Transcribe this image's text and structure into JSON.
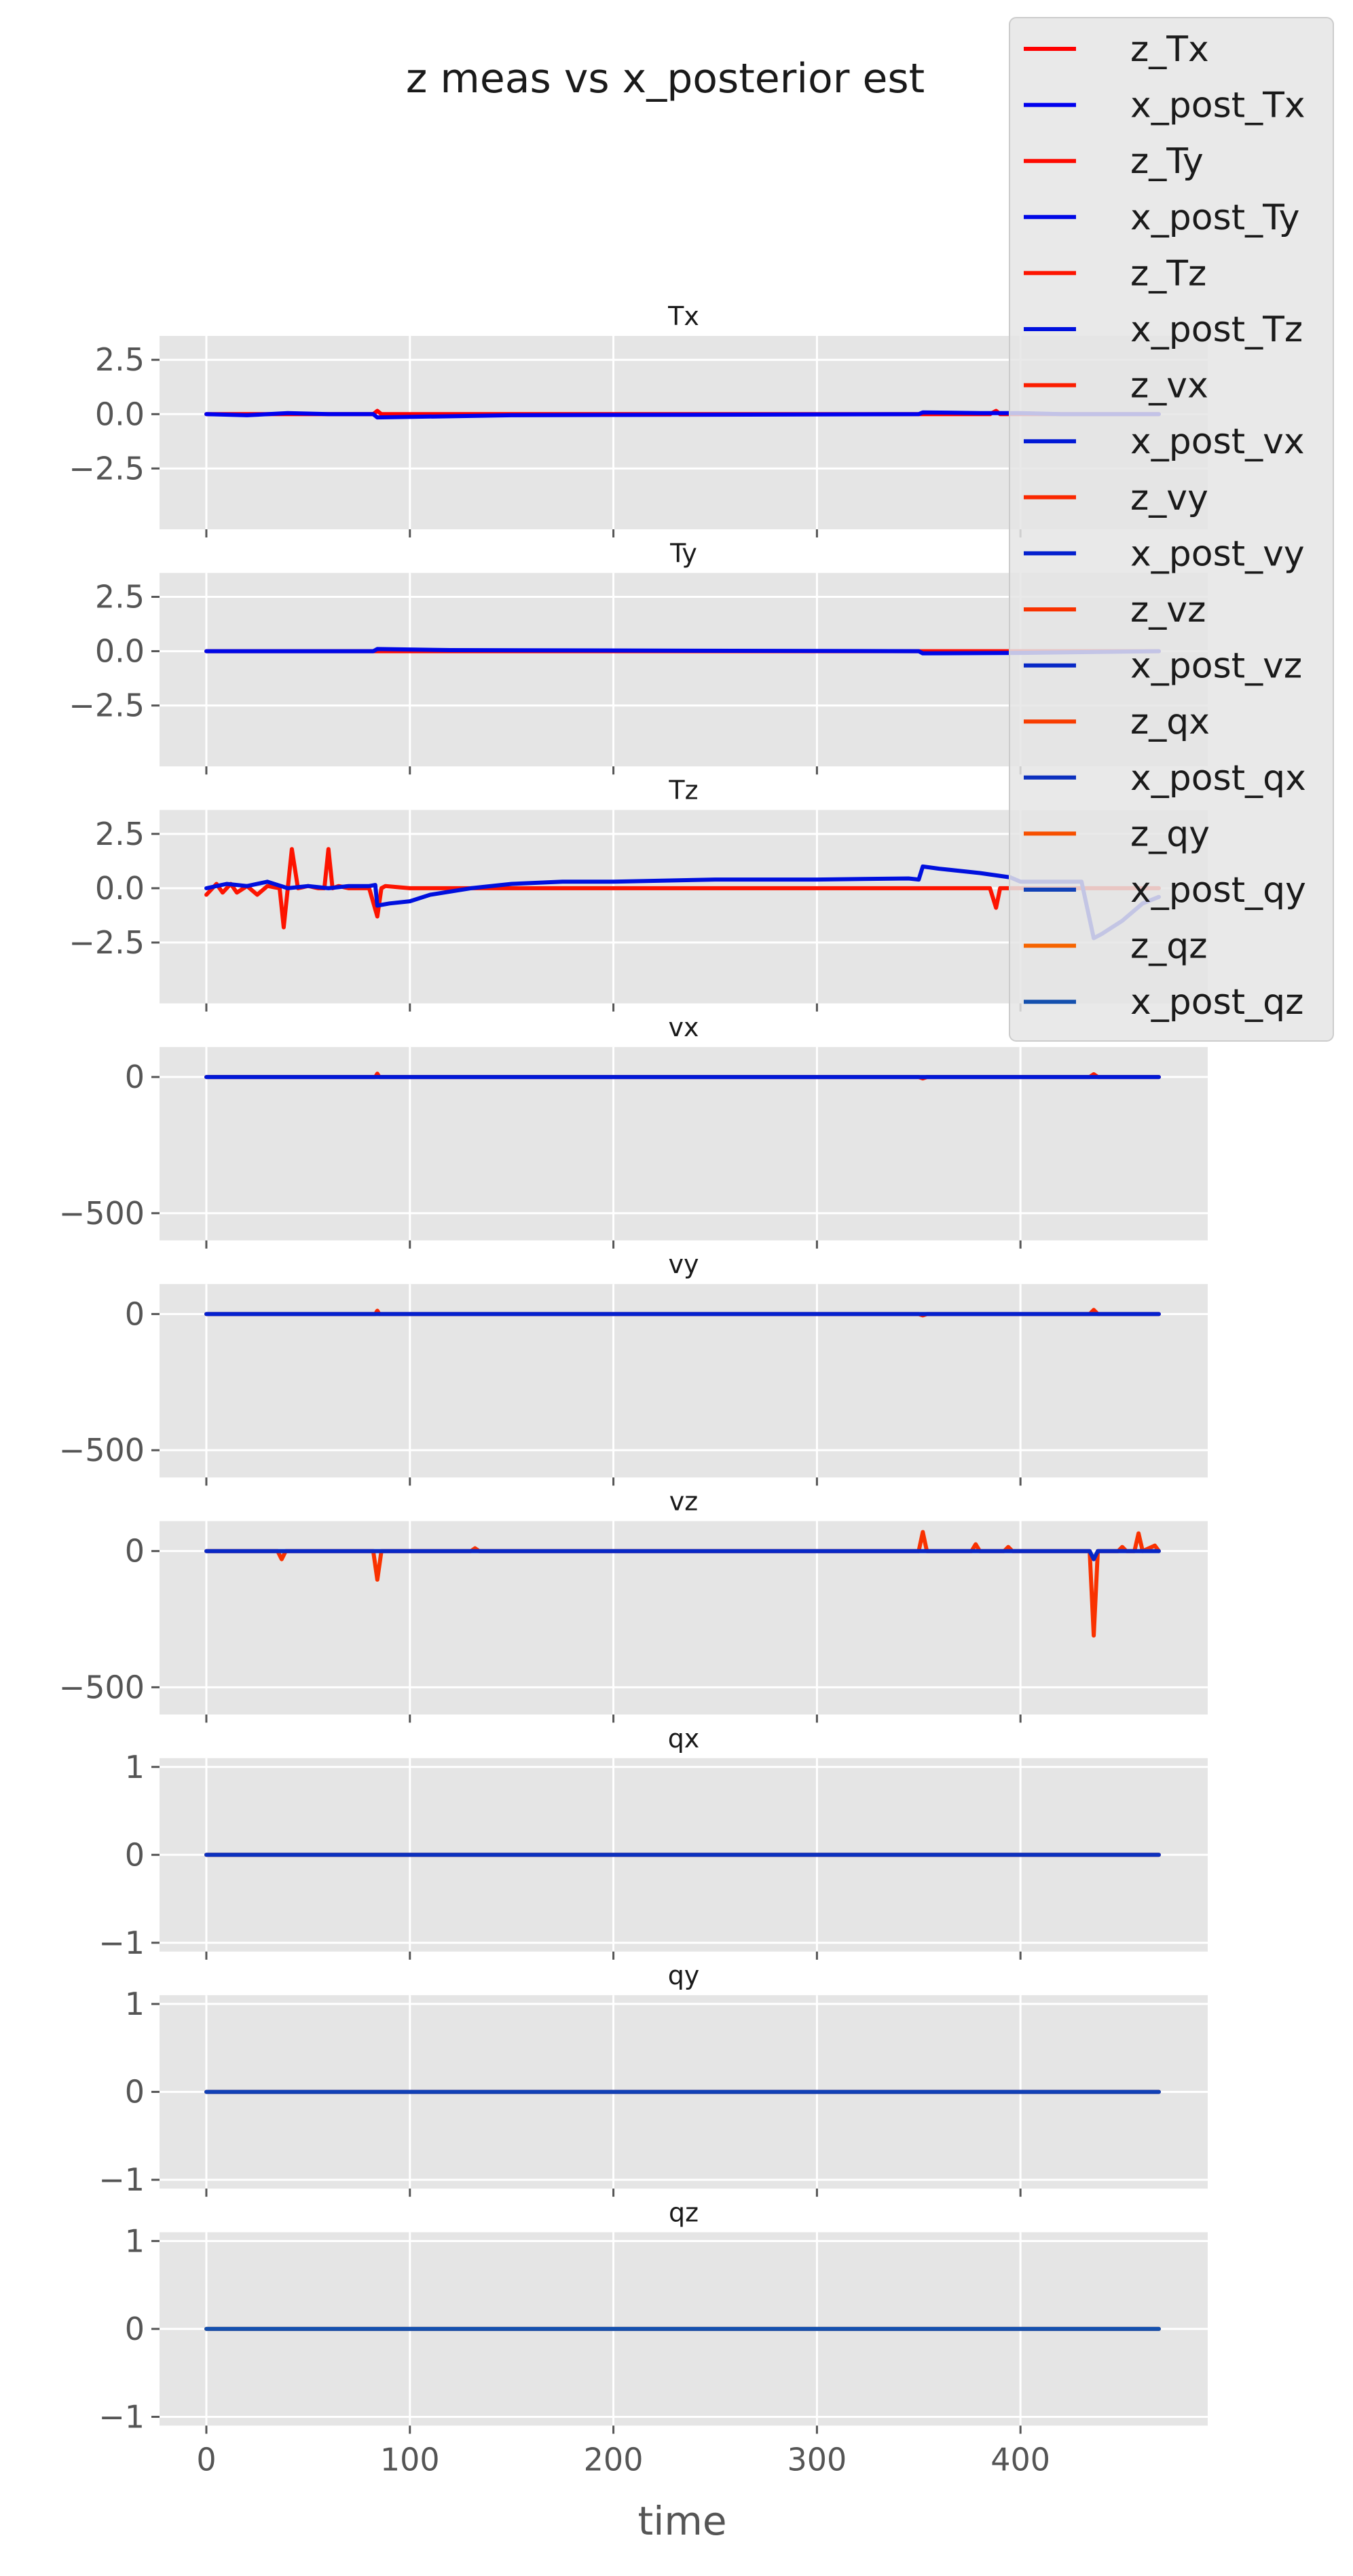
{
  "chart_data": {
    "type": "line",
    "title": "z meas vs x_posterior est",
    "xlabel": "time",
    "xlim": [
      -23,
      492
    ],
    "xticks": [
      0,
      100,
      200,
      300,
      400
    ],
    "grid": true,
    "legend_position": "top-right",
    "legend": [
      {
        "name": "z_Tx",
        "color": "#ff0000"
      },
      {
        "name": "x_post_Tx",
        "color": "#0000ee"
      },
      {
        "name": "z_Ty",
        "color": "#fe0a00"
      },
      {
        "name": "x_post_Ty",
        "color": "#0008e6"
      },
      {
        "name": "z_Tz",
        "color": "#fd1400"
      },
      {
        "name": "x_post_Tz",
        "color": "#0010de"
      },
      {
        "name": "z_vx",
        "color": "#fb1e00"
      },
      {
        "name": "x_post_vx",
        "color": "#0018d6"
      },
      {
        "name": "z_vy",
        "color": "#fa2800"
      },
      {
        "name": "x_post_vy",
        "color": "#0420ce"
      },
      {
        "name": "z_vz",
        "color": "#f93200"
      },
      {
        "name": "x_post_vz",
        "color": "#0828c6"
      },
      {
        "name": "z_qx",
        "color": "#f83c00"
      },
      {
        "name": "x_post_qx",
        "color": "#0c30be"
      },
      {
        "name": "z_qy",
        "color": "#f75000"
      },
      {
        "name": "x_post_qy",
        "color": "#1040b6"
      },
      {
        "name": "z_qz",
        "color": "#f66400"
      },
      {
        "name": "x_post_qz",
        "color": "#1450ae"
      }
    ],
    "subplots": [
      {
        "title": "Tx",
        "ylim": [
          -5.3,
          3.6
        ],
        "yticks": [
          {
            "v": 2.5,
            "label": "2.5"
          },
          {
            "v": 0,
            "label": "0.0"
          },
          {
            "v": -2.5,
            "label": "−2.5"
          }
        ],
        "series": [
          {
            "color": "#ff0000",
            "x": [
              0,
              82,
              84,
              86,
              350,
              385,
              388,
              390,
              468
            ],
            "y": [
              0,
              0,
              0.15,
              0,
              0,
              0,
              0.15,
              0,
              0
            ]
          },
          {
            "color": "#0000ee",
            "x": [
              0,
              20,
              40,
              60,
              82,
              84,
              150,
              350,
              352,
              380,
              400,
              420,
              468
            ],
            "y": [
              0,
              -0.05,
              0.05,
              0,
              0,
              -0.15,
              -0.05,
              0,
              0.08,
              0.05,
              0.05,
              0,
              0
            ]
          }
        ]
      },
      {
        "title": "Ty",
        "ylim": [
          -5.3,
          3.6
        ],
        "yticks": [
          {
            "v": 2.5,
            "label": "2.5"
          },
          {
            "v": 0,
            "label": "0.0"
          },
          {
            "v": -2.5,
            "label": "−2.5"
          }
        ],
        "series": [
          {
            "color": "#fe0a00",
            "x": [
              0,
              468
            ],
            "y": [
              0,
              0
            ]
          },
          {
            "color": "#0008e6",
            "x": [
              0,
              82,
              84,
              120,
              350,
              352,
              400,
              468
            ],
            "y": [
              0,
              0,
              0.1,
              0.05,
              0,
              -0.1,
              -0.08,
              0
            ]
          }
        ]
      },
      {
        "title": "Tz",
        "ylim": [
          -5.3,
          3.6
        ],
        "yticks": [
          {
            "v": 2.5,
            "label": "2.5"
          },
          {
            "v": 0,
            "label": "0.0"
          },
          {
            "v": -2.5,
            "label": "−2.5"
          }
        ],
        "series": [
          {
            "color": "#fd1400",
            "x": [
              0,
              5,
              8,
              12,
              15,
              20,
              25,
              30,
              36,
              38,
              40,
              42,
              45,
              50,
              55,
              58,
              60,
              62,
              65,
              70,
              80,
              84,
              86,
              88,
              100,
              200,
              300,
              380,
              385,
              388,
              390,
              440,
              460,
              468
            ],
            "y": [
              -0.3,
              0.2,
              -0.2,
              0.2,
              -0.2,
              0.1,
              -0.3,
              0.1,
              0,
              -1.8,
              0,
              1.8,
              0,
              0.1,
              0,
              0,
              1.8,
              0,
              0.1,
              0,
              0,
              -1.3,
              0,
              0.1,
              0,
              0,
              0,
              0,
              0,
              -0.9,
              0,
              0,
              0,
              0
            ]
          },
          {
            "color": "#0010de",
            "x": [
              0,
              10,
              20,
              30,
              40,
              50,
              60,
              70,
              80,
              83,
              84,
              90,
              100,
              110,
              130,
              150,
              175,
              200,
              250,
              300,
              345,
              350,
              352,
              360,
              380,
              395,
              400,
              430,
              436,
              440,
              450,
              460,
              468
            ],
            "y": [
              0,
              0.2,
              0.1,
              0.3,
              0,
              0.1,
              0,
              0.1,
              0.1,
              0.15,
              -0.8,
              -0.7,
              -0.6,
              -0.3,
              0,
              0.2,
              0.3,
              0.3,
              0.4,
              0.4,
              0.45,
              0.4,
              1.0,
              0.9,
              0.7,
              0.5,
              0.3,
              0.3,
              -2.3,
              -2.1,
              -1.5,
              -0.7,
              -0.4
            ]
          }
        ]
      },
      {
        "title": "vx",
        "ylim": [
          -600,
          110
        ],
        "yticks": [
          {
            "v": 0,
            "label": "0"
          },
          {
            "v": -500,
            "label": "−500"
          }
        ],
        "series": [
          {
            "color": "#fb1e00",
            "x": [
              0,
              83,
              84,
              85,
              350,
              352,
              354,
              400,
              434,
              436,
              438,
              468
            ],
            "y": [
              0,
              0,
              12,
              0,
              0,
              -5,
              0,
              0,
              0,
              10,
              0,
              0
            ]
          },
          {
            "color": "#0018d6",
            "x": [
              0,
              468
            ],
            "y": [
              0,
              0
            ]
          }
        ]
      },
      {
        "title": "vy",
        "ylim": [
          -600,
          110
        ],
        "yticks": [
          {
            "v": 0,
            "label": "0"
          },
          {
            "v": -500,
            "label": "−500"
          }
        ],
        "series": [
          {
            "color": "#fa2800",
            "x": [
              0,
              83,
              84,
              85,
              350,
              352,
              354,
              434,
              436,
              438,
              468
            ],
            "y": [
              0,
              0,
              12,
              0,
              0,
              -5,
              0,
              0,
              15,
              0,
              0
            ]
          },
          {
            "color": "#0420ce",
            "x": [
              0,
              468
            ],
            "y": [
              0,
              0
            ]
          }
        ]
      },
      {
        "title": "vz",
        "ylim": [
          -600,
          110
        ],
        "yticks": [
          {
            "v": 0,
            "label": "0"
          },
          {
            "v": -500,
            "label": "−500"
          }
        ],
        "series": [
          {
            "color": "#f93200",
            "x": [
              0,
              35,
              37,
              39,
              82,
              84,
              86,
              130,
              132,
              134,
              350,
              352,
              354,
              376,
              378,
              380,
              392,
              394,
              396,
              434,
              436,
              438,
              448,
              450,
              452,
              456,
              458,
              460,
              466,
              468
            ],
            "y": [
              0,
              0,
              -30,
              0,
              0,
              -105,
              0,
              0,
              10,
              0,
              0,
              70,
              0,
              0,
              25,
              0,
              0,
              15,
              0,
              0,
              -310,
              0,
              0,
              15,
              0,
              0,
              65,
              0,
              20,
              0
            ]
          },
          {
            "color": "#0828c6",
            "x": [
              0,
              434,
              436,
              438,
              468
            ],
            "y": [
              0,
              0,
              -30,
              0,
              0
            ]
          }
        ]
      },
      {
        "title": "qx",
        "ylim": [
          -1.1,
          1.1
        ],
        "yticks": [
          {
            "v": 1,
            "label": "1"
          },
          {
            "v": 0,
            "label": "0"
          },
          {
            "v": -1,
            "label": "−1"
          }
        ],
        "series": [
          {
            "color": "#f83c00",
            "x": [
              0,
              468
            ],
            "y": [
              0,
              0
            ]
          },
          {
            "color": "#0c30be",
            "x": [
              0,
              468
            ],
            "y": [
              0,
              0
            ]
          }
        ]
      },
      {
        "title": "qy",
        "ylim": [
          -1.1,
          1.1
        ],
        "yticks": [
          {
            "v": 1,
            "label": "1"
          },
          {
            "v": 0,
            "label": "0"
          },
          {
            "v": -1,
            "label": "−1"
          }
        ],
        "series": [
          {
            "color": "#f75000",
            "x": [
              0,
              468
            ],
            "y": [
              0,
              0
            ]
          },
          {
            "color": "#1040b6",
            "x": [
              0,
              468
            ],
            "y": [
              0,
              0
            ]
          }
        ]
      },
      {
        "title": "qz",
        "ylim": [
          -1.1,
          1.1
        ],
        "yticks": [
          {
            "v": 1,
            "label": "1"
          },
          {
            "v": 0,
            "label": "0"
          },
          {
            "v": -1,
            "label": "−1"
          }
        ],
        "series": [
          {
            "color": "#f66400",
            "x": [
              0,
              468
            ],
            "y": [
              0,
              0
            ]
          },
          {
            "color": "#1450ae",
            "x": [
              0,
              468
            ],
            "y": [
              0,
              0
            ]
          }
        ]
      }
    ]
  }
}
